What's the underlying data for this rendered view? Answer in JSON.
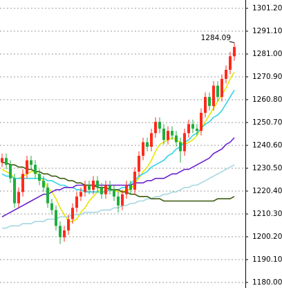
{
  "chart_data": {
    "type": "candlestick",
    "categories": [
      null,
      null,
      null,
      null,
      null,
      null,
      null,
      null,
      null,
      null,
      null,
      null,
      null,
      null,
      null,
      null,
      null,
      null,
      null,
      null,
      null,
      null,
      null,
      null,
      null,
      null,
      null,
      null,
      null,
      null,
      null,
      null,
      null,
      null,
      null,
      null,
      null,
      null,
      null,
      null,
      null,
      null,
      null,
      null,
      null,
      null,
      null,
      null,
      null,
      null,
      null,
      null,
      null,
      null,
      null,
      null,
      null
    ],
    "open": [
      1233,
      1235,
      1232,
      1226,
      1215,
      1220,
      1228,
      1234,
      1232,
      1228,
      1225,
      1222,
      1215,
      1212,
      1205,
      1200,
      1203,
      1208,
      1213,
      1218,
      1220,
      1223,
      1221,
      1225,
      1222,
      1219,
      1223,
      1221,
      1218,
      1214,
      1219,
      1223,
      1221,
      1229,
      1236,
      1242,
      1240,
      1246,
      1251,
      1248,
      1243,
      1247,
      1245,
      1242,
      1238,
      1246,
      1250,
      1248,
      1247,
      1255,
      1262,
      1258,
      1267,
      1262,
      1270,
      1274,
      1280
    ],
    "high": [
      1237,
      1237,
      1234,
      1228,
      1222,
      1230,
      1236,
      1236,
      1234,
      1230,
      1227,
      1224,
      1217,
      1214,
      1207,
      1205,
      1210,
      1215,
      1220,
      1222,
      1225,
      1225,
      1227,
      1227,
      1224,
      1225,
      1225,
      1223,
      1220,
      1221,
      1225,
      1225,
      1231,
      1238,
      1244,
      1244,
      1248,
      1253,
      1253,
      1250,
      1249,
      1249,
      1247,
      1244,
      1248,
      1252,
      1252,
      1250,
      1257,
      1264,
      1264,
      1269,
      1269,
      1272,
      1276,
      1282,
      1286
    ],
    "low": [
      1231,
      1230,
      1224,
      1213,
      1213,
      1218,
      1226,
      1230,
      1226,
      1223,
      1220,
      1213,
      1210,
      1203,
      1197,
      1198,
      1201,
      1206,
      1211,
      1216,
      1218,
      1219,
      1219,
      1220,
      1217,
      1217,
      1219,
      1216,
      1211,
      1212,
      1217,
      1219,
      1219,
      1227,
      1234,
      1238,
      1238,
      1244,
      1246,
      1241,
      1241,
      1243,
      1240,
      1233,
      1236,
      1244,
      1246,
      1245,
      1245,
      1253,
      1256,
      1256,
      1260,
      1260,
      1268,
      1272,
      1278
    ],
    "close": [
      1235,
      1232,
      1226,
      1215,
      1220,
      1228,
      1234,
      1232,
      1228,
      1225,
      1222,
      1215,
      1212,
      1205,
      1200,
      1203,
      1208,
      1213,
      1218,
      1220,
      1223,
      1221,
      1225,
      1222,
      1219,
      1223,
      1221,
      1218,
      1214,
      1219,
      1223,
      1221,
      1229,
      1236,
      1242,
      1240,
      1246,
      1251,
      1248,
      1243,
      1247,
      1245,
      1242,
      1238,
      1246,
      1250,
      1248,
      1247,
      1255,
      1262,
      1258,
      1267,
      1262,
      1270,
      1274,
      1280,
      1284.09
    ],
    "up_color": "#ff2a1a",
    "down_color": "#1fae3f",
    "series": [
      {
        "color": "#e6e600",
        "values": [
          1230,
          1229,
          1228,
          1226,
          1226,
          1227,
          1228,
          1229,
          1229,
          1227,
          1225,
          1222,
          1220,
          1217,
          1213,
          1210,
          1207,
          1207,
          1208,
          1211,
          1213,
          1216,
          1218,
          1220,
          1222,
          1222,
          1221,
          1221,
          1220,
          1220,
          1221,
          1221,
          1224,
          1226,
          1229,
          1231,
          1234,
          1238,
          1241,
          1242,
          1243,
          1244,
          1243,
          1242,
          1241,
          1242,
          1243,
          1245,
          1248,
          1251,
          1254,
          1257,
          1260,
          1263,
          1266,
          1270,
          1273
        ]
      },
      {
        "color": "#2ed3e6",
        "values": [
          1228,
          1227,
          1227,
          1226,
          1226,
          1226,
          1226,
          1226,
          1226,
          1226,
          1226,
          1225,
          1225,
          1224,
          1223,
          1223,
          1222,
          1222,
          1221,
          1221,
          1220,
          1220,
          1220,
          1220,
          1220,
          1220,
          1221,
          1221,
          1221,
          1222,
          1222,
          1224,
          1225,
          1227,
          1228,
          1229,
          1231,
          1232,
          1233,
          1234,
          1236,
          1237,
          1239,
          1240,
          1242,
          1243,
          1245,
          1246,
          1248,
          1250,
          1251,
          1253,
          1254,
          1256,
          1259,
          1262,
          1265
        ]
      },
      {
        "color": "#6a1fd0",
        "values": [
          1209,
          1210,
          1211,
          1212,
          1213,
          1214,
          1215,
          1216,
          1217,
          1218,
          1219,
          1219,
          1220,
          1221,
          1221,
          1222,
          1222,
          1222,
          1223,
          1223,
          1223,
          1223,
          1223,
          1223,
          1223,
          1223,
          1223,
          1223,
          1223,
          1223,
          1223,
          1223,
          1224,
          1224,
          1224,
          1225,
          1225,
          1226,
          1226,
          1226,
          1227,
          1228,
          1228,
          1229,
          1230,
          1230,
          1231,
          1232,
          1233,
          1234,
          1235,
          1237,
          1238,
          1239,
          1241,
          1242,
          1244
        ]
      },
      {
        "color": "#a6d6e0",
        "values": [
          1204,
          1204,
          1205,
          1205,
          1205,
          1206,
          1206,
          1206,
          1207,
          1207,
          1207,
          1208,
          1208,
          1208,
          1209,
          1209,
          1209,
          1210,
          1210,
          1210,
          1211,
          1211,
          1211,
          1211,
          1212,
          1212,
          1212,
          1213,
          1213,
          1214,
          1214,
          1215,
          1215,
          1216,
          1216,
          1217,
          1217,
          1218,
          1218,
          1219,
          1219,
          1220,
          1220,
          1221,
          1222,
          1222,
          1223,
          1223,
          1224,
          1225,
          1226,
          1227,
          1228,
          1229,
          1230,
          1231,
          1232
        ]
      },
      {
        "color": "#3d5a0e",
        "values": [
          1233,
          1233,
          1232,
          1232,
          1231,
          1231,
          1230,
          1230,
          1229,
          1229,
          1228,
          1228,
          1227,
          1227,
          1226,
          1226,
          1225,
          1225,
          1224,
          1224,
          1223,
          1223,
          1223,
          1222,
          1222,
          1222,
          1221,
          1221,
          1221,
          1220,
          1220,
          1219,
          1219,
          1218,
          1218,
          1218,
          1217,
          1217,
          1217,
          1216,
          1216,
          1216,
          1216,
          1216,
          1216,
          1216,
          1216,
          1216,
          1216,
          1216,
          1216,
          1216,
          1217,
          1217,
          1217,
          1217,
          1218
        ]
      }
    ],
    "ylim": [
      1177.55,
      1304.87
    ],
    "yticks": [
      {
        "value": 1180,
        "label": "1180.00"
      },
      {
        "value": 1190.1,
        "label": "1190.10"
      },
      {
        "value": 1200.2,
        "label": "1200.20"
      },
      {
        "value": 1210.3,
        "label": "1210.30"
      },
      {
        "value": 1220.4,
        "label": "1220.40"
      },
      {
        "value": 1230.5,
        "label": "1230.50"
      },
      {
        "value": 1240.6,
        "label": "1240.60"
      },
      {
        "value": 1250.7,
        "label": "1250.70"
      },
      {
        "value": 1260.8,
        "label": "1260.80"
      },
      {
        "value": 1270.9,
        "label": "1270.90"
      },
      {
        "value": 1281,
        "label": "1281.00"
      },
      {
        "value": 1291.1,
        "label": "1291.10"
      },
      {
        "value": 1301.2,
        "label": "1301.20"
      }
    ],
    "grid": true
  }
}
